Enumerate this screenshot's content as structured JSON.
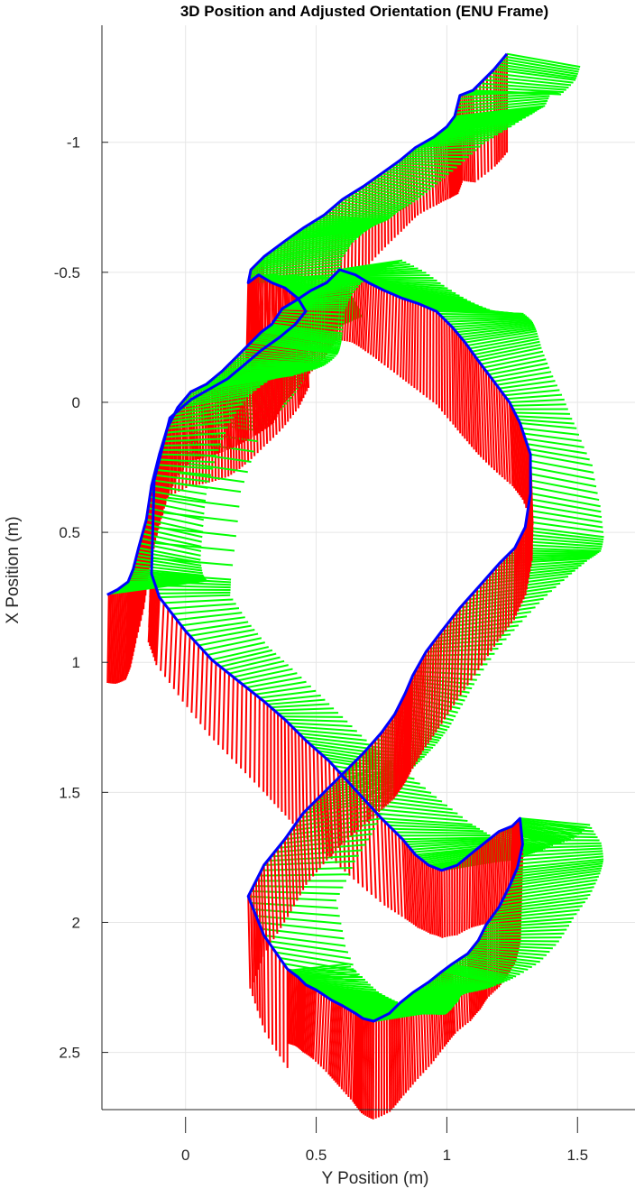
{
  "chart_data": {
    "type": "line",
    "title": "3D Position and Adjusted Orientation (ENU Frame)",
    "xlabel": "Y Position (m)",
    "ylabel": "X Position (m)",
    "xlim": [
      -0.32,
      1.72
    ],
    "ylim": [
      -1.45,
      2.72
    ],
    "y_reversed": true,
    "grid": true,
    "x_ticks": [
      0,
      0.5,
      1,
      1.5
    ],
    "x_tick_labels": [
      "0",
      "0.5",
      "1",
      "1.5"
    ],
    "y_ticks": [
      -1,
      -0.5,
      0,
      0.5,
      1,
      1.5,
      2,
      2.5
    ],
    "y_tick_labels": [
      "-1",
      "-0.5",
      "0",
      "0.5",
      "1",
      "1.5",
      "2",
      "2.5"
    ],
    "colors": {
      "trajectory": "#0000ff",
      "axis_arrows_a": "#ff0000",
      "axis_arrows_b": "#00ff00"
    },
    "series": [
      {
        "color": "#0000ff",
        "x": [
          1.23,
          1.18,
          1.1,
          1.05,
          1.03,
          1.0,
          0.95,
          0.88,
          0.82,
          0.75,
          0.68,
          0.6,
          0.53,
          0.45,
          0.38,
          0.3,
          0.25,
          0.24,
          0.28,
          0.33,
          0.38,
          0.43,
          0.46,
          0.42,
          0.36,
          0.29,
          0.22,
          0.16,
          0.09,
          0.02,
          -0.06,
          -0.12,
          -0.13,
          -0.1,
          0.0,
          0.1,
          0.2,
          0.3,
          0.38,
          0.46,
          0.55,
          0.65,
          0.75,
          0.83,
          0.88,
          0.93,
          0.98,
          1.04,
          1.1,
          1.15,
          1.2,
          1.25,
          1.28,
          1.29,
          1.27,
          1.24,
          1.2,
          1.15,
          1.12,
          1.08,
          1.02,
          0.98,
          0.93,
          0.87,
          0.82,
          0.78,
          0.72,
          0.68,
          0.65,
          0.6,
          0.56,
          0.5,
          0.46,
          0.43,
          0.39
        ],
        "y": [
          -1.34,
          -1.28,
          -1.2,
          -1.18,
          -1.1,
          -1.06,
          -1.02,
          -0.98,
          -0.93,
          -0.88,
          -0.83,
          -0.78,
          -0.72,
          -0.67,
          -0.62,
          -0.56,
          -0.51,
          -0.46,
          -0.49,
          -0.46,
          -0.44,
          -0.4,
          -0.35,
          -0.3,
          -0.25,
          -0.2,
          -0.14,
          -0.09,
          -0.05,
          -0.01,
          0.06,
          0.3,
          0.66,
          0.75,
          0.88,
          0.99,
          1.07,
          1.15,
          1.22,
          1.3,
          1.38,
          1.49,
          1.6,
          1.68,
          1.74,
          1.78,
          1.8,
          1.78,
          1.73,
          1.69,
          1.65,
          1.63,
          1.6,
          1.7,
          1.79,
          1.86,
          1.94,
          2.01,
          2.07,
          2.12,
          2.16,
          2.19,
          2.23,
          2.27,
          2.31,
          2.35,
          2.38,
          2.37,
          2.35,
          2.32,
          2.3,
          2.26,
          2.24,
          2.21,
          2.18
        ]
      },
      {
        "color": "#0000ff",
        "x": [
          0.39,
          0.3,
          0.24,
          0.3,
          0.38,
          0.45,
          0.53,
          0.6,
          0.68,
          0.75,
          0.8,
          0.84,
          0.87,
          0.92,
          0.98,
          1.05,
          1.13,
          1.2,
          1.26,
          1.3,
          1.32,
          1.32,
          1.28,
          1.24,
          1.18,
          1.12,
          1.07,
          1.02,
          0.96,
          0.89,
          0.83,
          0.76,
          0.7,
          0.65,
          0.59,
          0.54,
          0.48,
          0.42,
          0.37,
          0.33,
          0.29,
          0.25,
          0.19,
          0.14,
          0.08,
          0.02,
          -0.03,
          -0.07,
          -0.1,
          -0.13,
          -0.15,
          -0.18,
          -0.2,
          -0.22,
          -0.26,
          -0.3
        ],
        "y": [
          2.18,
          2.05,
          1.9,
          1.78,
          1.68,
          1.58,
          1.5,
          1.43,
          1.35,
          1.27,
          1.2,
          1.12,
          1.05,
          0.96,
          0.88,
          0.79,
          0.7,
          0.62,
          0.56,
          0.48,
          0.35,
          0.2,
          0.08,
          0.0,
          -0.08,
          -0.16,
          -0.23,
          -0.29,
          -0.35,
          -0.38,
          -0.4,
          -0.43,
          -0.46,
          -0.49,
          -0.51,
          -0.46,
          -0.43,
          -0.39,
          -0.36,
          -0.3,
          -0.27,
          -0.23,
          -0.17,
          -0.12,
          -0.07,
          -0.04,
          0.02,
          0.1,
          0.2,
          0.32,
          0.45,
          0.56,
          0.64,
          0.69,
          0.72,
          0.74
        ]
      }
    ]
  }
}
